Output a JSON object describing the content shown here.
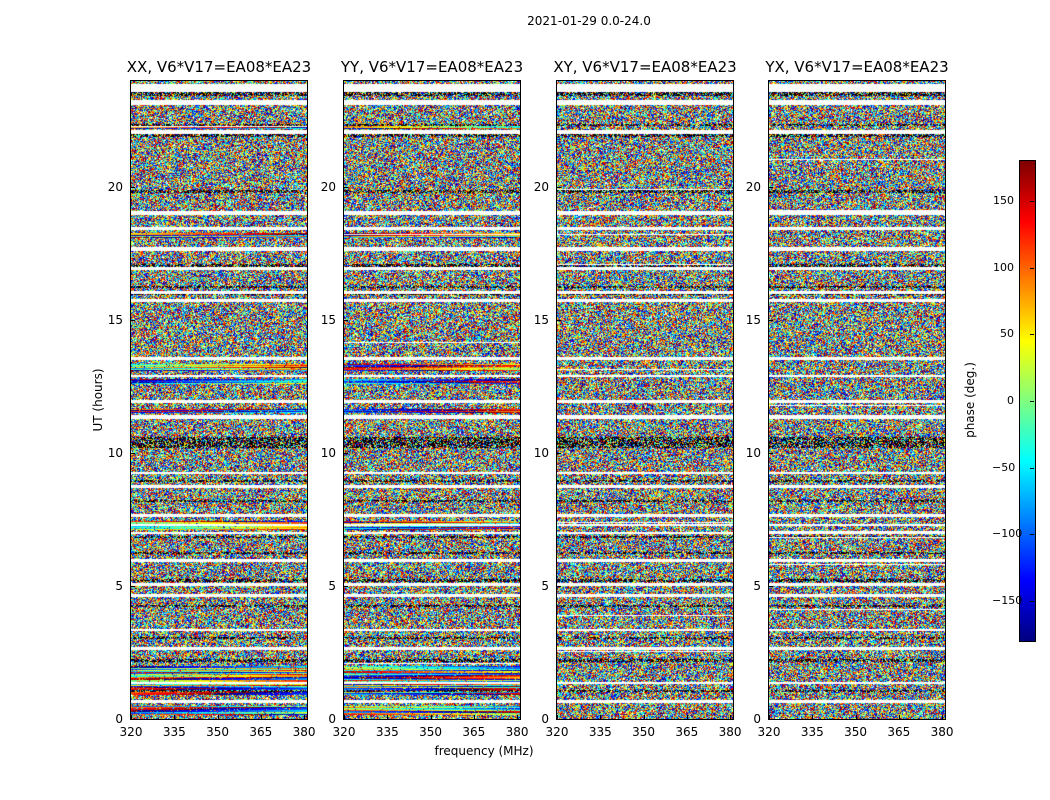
{
  "figure": {
    "title": "2021-01-29 0.0-24.0",
    "xlabel": "frequency (MHz)",
    "ylabel": "UT (hours)"
  },
  "chart_data": {
    "type": "heatmap",
    "title": "2021-01-29 0.0-24.0",
    "xlabel": "frequency (MHz)",
    "ylabel": "UT (hours)",
    "xlim": [
      320,
      381
    ],
    "ylim": [
      0,
      24
    ],
    "xticks": [
      320,
      335,
      350,
      365,
      380
    ],
    "xtick_labels": [
      "320",
      "335",
      "350",
      "365",
      "380"
    ],
    "yticks": [
      0,
      5,
      10,
      15,
      20
    ],
    "ytick_labels": [
      "0",
      "5",
      "10",
      "15",
      "20"
    ],
    "colorbar": {
      "label": "phase (deg.)",
      "range": [
        -180,
        180
      ],
      "ticks": [
        150,
        100,
        50,
        0,
        -50,
        -100,
        -150
      ],
      "tick_labels": [
        "150",
        "100",
        "50",
        "0",
        "−50",
        "−100",
        "−150"
      ],
      "colormap": "jet"
    },
    "panels": [
      {
        "id": "xx",
        "title": "XX, V6*V17=EA08*EA23",
        "seed": 11,
        "structured": true,
        "flip": false
      },
      {
        "id": "yy",
        "title": "YY, V6*V17=EA08*EA23",
        "seed": 23,
        "structured": true,
        "flip": true
      },
      {
        "id": "xy",
        "title": "XY, V6*V17=EA08*EA23",
        "seed": 37,
        "structured": false,
        "flip": false
      },
      {
        "id": "yx",
        "title": "YX, V6*V17=EA08*EA23",
        "seed": 53,
        "structured": false,
        "flip": false
      }
    ],
    "flagged_ut_hours": [
      [
        23.6,
        23.9
      ],
      [
        23.1,
        23.3
      ],
      [
        22.0,
        22.15
      ],
      [
        18.95,
        19.1
      ],
      [
        18.4,
        18.5
      ],
      [
        17.6,
        17.75
      ],
      [
        16.9,
        17.0
      ],
      [
        16.0,
        16.1
      ],
      [
        15.7,
        15.8
      ],
      [
        13.5,
        13.6
      ],
      [
        12.85,
        12.95
      ],
      [
        11.9,
        12.0
      ],
      [
        11.3,
        11.45
      ],
      [
        9.2,
        9.3
      ],
      [
        8.7,
        8.8
      ],
      [
        7.6,
        7.7
      ],
      [
        7.25,
        7.35
      ],
      [
        6.95,
        7.05
      ],
      [
        5.9,
        6.0
      ],
      [
        5.0,
        5.1
      ],
      [
        4.6,
        4.7
      ],
      [
        3.3,
        3.4
      ],
      [
        2.6,
        2.7
      ],
      [
        1.3,
        1.4
      ],
      [
        0.6,
        0.7
      ]
    ],
    "dark_ut_hours": [
      [
        23.45,
        23.6
      ],
      [
        22.3,
        22.4
      ],
      [
        21.9,
        22.0
      ],
      [
        19.8,
        19.9
      ],
      [
        17.0,
        17.1
      ],
      [
        16.2,
        16.3
      ],
      [
        15.95,
        16.0
      ],
      [
        10.2,
        10.6
      ],
      [
        8.9,
        9.0
      ],
      [
        8.15,
        8.25
      ],
      [
        6.8,
        6.9
      ],
      [
        6.2,
        6.3
      ],
      [
        5.15,
        5.25
      ],
      [
        4.2,
        4.3
      ],
      [
        3.0,
        3.1
      ],
      [
        2.15,
        2.25
      ],
      [
        1.0,
        1.1
      ]
    ],
    "coherent_ut_hours": [
      [
        22.2,
        22.3
      ],
      [
        18.1,
        18.3
      ],
      [
        13.1,
        13.35
      ],
      [
        12.6,
        12.8
      ],
      [
        11.5,
        11.65
      ],
      [
        7.3,
        7.45
      ],
      [
        7.1,
        7.25
      ],
      [
        1.6,
        2.0
      ],
      [
        0.9,
        1.6
      ],
      [
        0.15,
        0.5
      ]
    ]
  }
}
